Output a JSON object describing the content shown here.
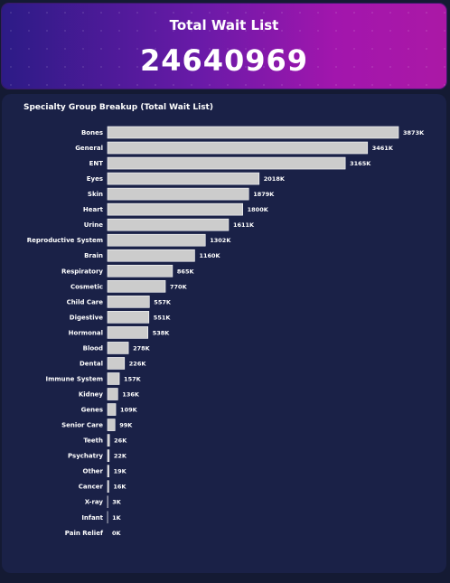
{
  "kpi": {
    "title": "Total Wait List",
    "value": "24640969"
  },
  "chart_data": {
    "type": "bar",
    "orientation": "horizontal",
    "title": "Specialty Group Breakup (Total Wait List)",
    "xlabel": "",
    "ylabel": "",
    "categories": [
      "Bones",
      "General",
      "ENT",
      "Eyes",
      "Skin",
      "Heart",
      "Urine",
      "Reproductive System",
      "Brain",
      "Respiratory",
      "Cosmetic",
      "Child Care",
      "Digestive",
      "Hormonal",
      "Blood",
      "Dental",
      "Immune System",
      "Kidney",
      "Genes",
      "Senior Care",
      "Teeth",
      "Psychatry",
      "Other",
      "Cancer",
      "X-ray",
      "Infant",
      "Pain Relief"
    ],
    "values": [
      3873,
      3461,
      3165,
      2018,
      1879,
      1800,
      1611,
      1302,
      1160,
      865,
      770,
      557,
      551,
      538,
      278,
      226,
      157,
      136,
      109,
      99,
      26,
      22,
      19,
      16,
      3,
      1,
      0
    ],
    "value_labels": [
      "3873K",
      "3461K",
      "3165K",
      "2018K",
      "1879K",
      "1800K",
      "1611K",
      "1302K",
      "1160K",
      "865K",
      "770K",
      "557K",
      "551K",
      "538K",
      "278K",
      "226K",
      "157K",
      "136K",
      "109K",
      "99K",
      "26K",
      "22K",
      "19K",
      "16K",
      "3K",
      "1K",
      "0K"
    ],
    "value_unit": "K",
    "bar_color": "#cccccc",
    "grid": false,
    "legend": "none"
  }
}
